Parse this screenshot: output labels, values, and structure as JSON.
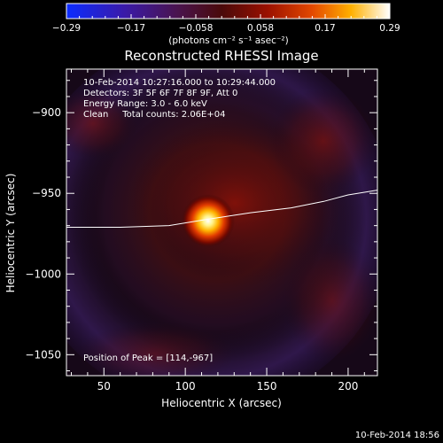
{
  "chart_data": {
    "type": "heatmap",
    "title": "Reconstructed RHESSI Image",
    "xlabel": "Heliocentric X (arcsec)",
    "ylabel": "Heliocentric Y (arcsec)",
    "xlim": [
      27,
      218
    ],
    "ylim": [
      -1063,
      -873
    ],
    "x_ticks": [
      50,
      100,
      150,
      200
    ],
    "y_ticks": [
      -900,
      -950,
      -1000,
      -1050
    ],
    "colorbar": {
      "ticks": [
        "-0.29",
        "-0.17",
        "-0.058",
        "0.058",
        "0.17",
        "0.29"
      ],
      "min": -0.29,
      "max": 0.29,
      "unit_label": "(photons cm⁻² s⁻¹ asec⁻²)"
    },
    "info_lines": [
      "10-Feb-2014 10:27:16.000 to 10:29:44.000",
      "Detectors: 3F 5F 6F 7F 8F 9F, Att 0",
      "Energy Range: 3.0 - 6.0 keV",
      "Clean     Total counts: 2.06E+04"
    ],
    "peak_label": "Position of Peak = [114,-967]",
    "peak": {
      "x": 114,
      "y": -967
    },
    "limb_curve": [
      [
        27,
        -971
      ],
      [
        60,
        -971
      ],
      [
        90,
        -970
      ],
      [
        114,
        -966
      ],
      [
        140,
        -962
      ],
      [
        165,
        -959
      ],
      [
        185,
        -955
      ],
      [
        200,
        -951
      ],
      [
        218,
        -948
      ]
    ],
    "footer_timestamp": "10-Feb-2014 18:56"
  }
}
